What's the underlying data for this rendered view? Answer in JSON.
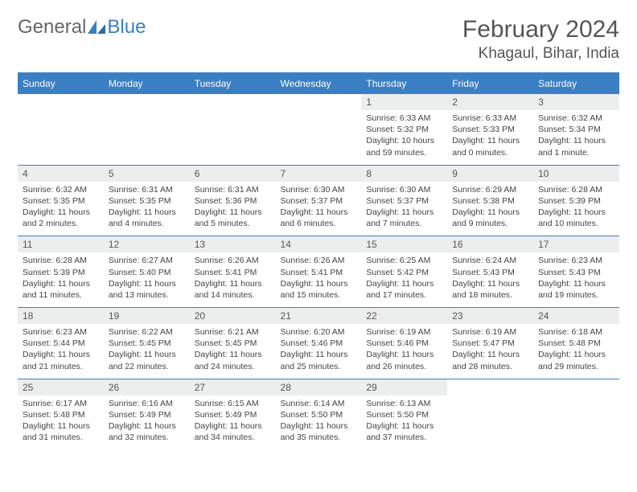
{
  "logo": {
    "text1": "General",
    "text2": "Blue"
  },
  "title": "February 2024",
  "location": "Khagaul, Bihar, India",
  "colors": {
    "accent": "#3a7fc4",
    "header_text": "#ffffff",
    "daynum_bg": "#eceded",
    "text": "#444444",
    "title_text": "#555555"
  },
  "daynames": [
    "Sunday",
    "Monday",
    "Tuesday",
    "Wednesday",
    "Thursday",
    "Friday",
    "Saturday"
  ],
  "weeks": [
    [
      {
        "n": "",
        "sr": "",
        "ss": "",
        "dl": ""
      },
      {
        "n": "",
        "sr": "",
        "ss": "",
        "dl": ""
      },
      {
        "n": "",
        "sr": "",
        "ss": "",
        "dl": ""
      },
      {
        "n": "",
        "sr": "",
        "ss": "",
        "dl": ""
      },
      {
        "n": "1",
        "sr": "Sunrise: 6:33 AM",
        "ss": "Sunset: 5:32 PM",
        "dl": "Daylight: 10 hours and 59 minutes."
      },
      {
        "n": "2",
        "sr": "Sunrise: 6:33 AM",
        "ss": "Sunset: 5:33 PM",
        "dl": "Daylight: 11 hours and 0 minutes."
      },
      {
        "n": "3",
        "sr": "Sunrise: 6:32 AM",
        "ss": "Sunset: 5:34 PM",
        "dl": "Daylight: 11 hours and 1 minute."
      }
    ],
    [
      {
        "n": "4",
        "sr": "Sunrise: 6:32 AM",
        "ss": "Sunset: 5:35 PM",
        "dl": "Daylight: 11 hours and 2 minutes."
      },
      {
        "n": "5",
        "sr": "Sunrise: 6:31 AM",
        "ss": "Sunset: 5:35 PM",
        "dl": "Daylight: 11 hours and 4 minutes."
      },
      {
        "n": "6",
        "sr": "Sunrise: 6:31 AM",
        "ss": "Sunset: 5:36 PM",
        "dl": "Daylight: 11 hours and 5 minutes."
      },
      {
        "n": "7",
        "sr": "Sunrise: 6:30 AM",
        "ss": "Sunset: 5:37 PM",
        "dl": "Daylight: 11 hours and 6 minutes."
      },
      {
        "n": "8",
        "sr": "Sunrise: 6:30 AM",
        "ss": "Sunset: 5:37 PM",
        "dl": "Daylight: 11 hours and 7 minutes."
      },
      {
        "n": "9",
        "sr": "Sunrise: 6:29 AM",
        "ss": "Sunset: 5:38 PM",
        "dl": "Daylight: 11 hours and 9 minutes."
      },
      {
        "n": "10",
        "sr": "Sunrise: 6:28 AM",
        "ss": "Sunset: 5:39 PM",
        "dl": "Daylight: 11 hours and 10 minutes."
      }
    ],
    [
      {
        "n": "11",
        "sr": "Sunrise: 6:28 AM",
        "ss": "Sunset: 5:39 PM",
        "dl": "Daylight: 11 hours and 11 minutes."
      },
      {
        "n": "12",
        "sr": "Sunrise: 6:27 AM",
        "ss": "Sunset: 5:40 PM",
        "dl": "Daylight: 11 hours and 13 minutes."
      },
      {
        "n": "13",
        "sr": "Sunrise: 6:26 AM",
        "ss": "Sunset: 5:41 PM",
        "dl": "Daylight: 11 hours and 14 minutes."
      },
      {
        "n": "14",
        "sr": "Sunrise: 6:26 AM",
        "ss": "Sunset: 5:41 PM",
        "dl": "Daylight: 11 hours and 15 minutes."
      },
      {
        "n": "15",
        "sr": "Sunrise: 6:25 AM",
        "ss": "Sunset: 5:42 PM",
        "dl": "Daylight: 11 hours and 17 minutes."
      },
      {
        "n": "16",
        "sr": "Sunrise: 6:24 AM",
        "ss": "Sunset: 5:43 PM",
        "dl": "Daylight: 11 hours and 18 minutes."
      },
      {
        "n": "17",
        "sr": "Sunrise: 6:23 AM",
        "ss": "Sunset: 5:43 PM",
        "dl": "Daylight: 11 hours and 19 minutes."
      }
    ],
    [
      {
        "n": "18",
        "sr": "Sunrise: 6:23 AM",
        "ss": "Sunset: 5:44 PM",
        "dl": "Daylight: 11 hours and 21 minutes."
      },
      {
        "n": "19",
        "sr": "Sunrise: 6:22 AM",
        "ss": "Sunset: 5:45 PM",
        "dl": "Daylight: 11 hours and 22 minutes."
      },
      {
        "n": "20",
        "sr": "Sunrise: 6:21 AM",
        "ss": "Sunset: 5:45 PM",
        "dl": "Daylight: 11 hours and 24 minutes."
      },
      {
        "n": "21",
        "sr": "Sunrise: 6:20 AM",
        "ss": "Sunset: 5:46 PM",
        "dl": "Daylight: 11 hours and 25 minutes."
      },
      {
        "n": "22",
        "sr": "Sunrise: 6:19 AM",
        "ss": "Sunset: 5:46 PM",
        "dl": "Daylight: 11 hours and 26 minutes."
      },
      {
        "n": "23",
        "sr": "Sunrise: 6:19 AM",
        "ss": "Sunset: 5:47 PM",
        "dl": "Daylight: 11 hours and 28 minutes."
      },
      {
        "n": "24",
        "sr": "Sunrise: 6:18 AM",
        "ss": "Sunset: 5:48 PM",
        "dl": "Daylight: 11 hours and 29 minutes."
      }
    ],
    [
      {
        "n": "25",
        "sr": "Sunrise: 6:17 AM",
        "ss": "Sunset: 5:48 PM",
        "dl": "Daylight: 11 hours and 31 minutes."
      },
      {
        "n": "26",
        "sr": "Sunrise: 6:16 AM",
        "ss": "Sunset: 5:49 PM",
        "dl": "Daylight: 11 hours and 32 minutes."
      },
      {
        "n": "27",
        "sr": "Sunrise: 6:15 AM",
        "ss": "Sunset: 5:49 PM",
        "dl": "Daylight: 11 hours and 34 minutes."
      },
      {
        "n": "28",
        "sr": "Sunrise: 6:14 AM",
        "ss": "Sunset: 5:50 PM",
        "dl": "Daylight: 11 hours and 35 minutes."
      },
      {
        "n": "29",
        "sr": "Sunrise: 6:13 AM",
        "ss": "Sunset: 5:50 PM",
        "dl": "Daylight: 11 hours and 37 minutes."
      },
      {
        "n": "",
        "sr": "",
        "ss": "",
        "dl": ""
      },
      {
        "n": "",
        "sr": "",
        "ss": "",
        "dl": ""
      }
    ]
  ]
}
